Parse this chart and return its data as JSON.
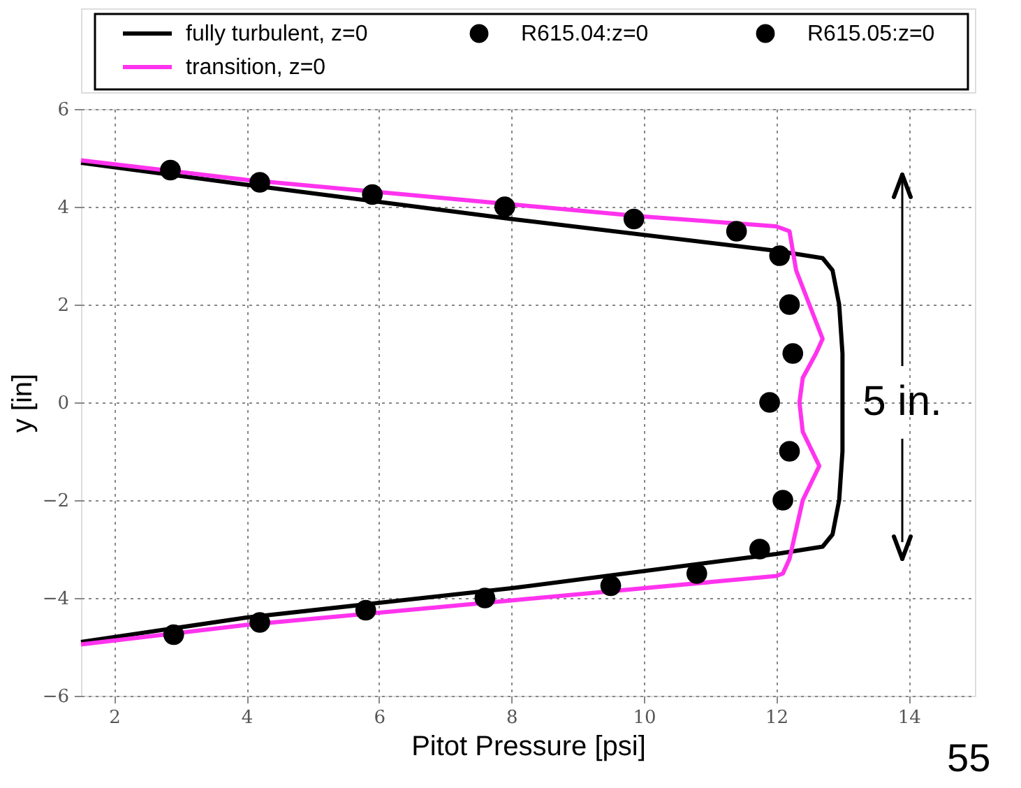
{
  "chart_data": {
    "type": "line",
    "xlabel": "Pitot Pressure [psi]",
    "ylabel": "y [in]",
    "xlim": [
      1.5,
      15
    ],
    "ylim": [
      -6,
      6
    ],
    "xticks": [
      2,
      4,
      6,
      8,
      10,
      12,
      14
    ],
    "yticks": [
      -6,
      -4,
      -2,
      0,
      2,
      4,
      6
    ],
    "grid": true,
    "legend": "top",
    "line_style": "solid",
    "series": [
      {
        "name": "fully turbulent, z=0",
        "color": "#000000",
        "marker": "none",
        "x": [
          1.5,
          4,
          8,
          12,
          12.7,
          12.85,
          12.95,
          13.0,
          13.0,
          13.0,
          12.95,
          12.85,
          12.7,
          12,
          8,
          4,
          1.5
        ],
        "values": [
          4.9,
          4.45,
          3.75,
          3.1,
          2.95,
          2.7,
          2,
          1,
          0,
          -1,
          -2,
          -2.7,
          -2.95,
          -3.1,
          -3.8,
          -4.4,
          -4.9
        ]
      },
      {
        "name": "transition, z=0",
        "color": "#ff33ee",
        "marker": "none",
        "x": [
          1.5,
          4,
          8,
          10,
          12,
          12.2,
          12.3,
          12.5,
          12.7,
          12.6,
          12.4,
          12.35,
          12.4,
          12.65,
          12.4,
          12.2,
          12.1,
          12,
          10,
          8,
          4,
          1.5
        ],
        "values": [
          4.95,
          4.55,
          4.05,
          3.8,
          3.6,
          3.5,
          2.7,
          2.0,
          1.3,
          1.0,
          0.5,
          0,
          -0.6,
          -1.3,
          -2.0,
          -3.2,
          -3.5,
          -3.55,
          -3.8,
          -4.05,
          -4.55,
          -4.95
        ]
      },
      {
        "name": "R615.04:z=0",
        "type": "scatter",
        "color": "#000000",
        "marker": "circle",
        "x": [
          2.85,
          4.2,
          5.9,
          7.9,
          9.85,
          11.4,
          12.05,
          12.2,
          12.25,
          11.9
        ],
        "values": [
          4.75,
          4.5,
          4.25,
          4.0,
          3.75,
          3.5,
          3.0,
          2.0,
          1.0,
          0
        ]
      },
      {
        "name": "R615.05:z=0",
        "type": "scatter",
        "color": "#000000",
        "marker": "circle",
        "x": [
          12.2,
          12.1,
          11.75,
          10.8,
          9.5,
          7.6,
          5.8,
          4.2,
          2.9
        ],
        "values": [
          -1.0,
          -2.0,
          -3.0,
          -3.5,
          -3.75,
          -4.0,
          -4.25,
          -4.5,
          -4.75
        ]
      }
    ],
    "annotations": [
      "5 in.",
      "55"
    ]
  }
}
